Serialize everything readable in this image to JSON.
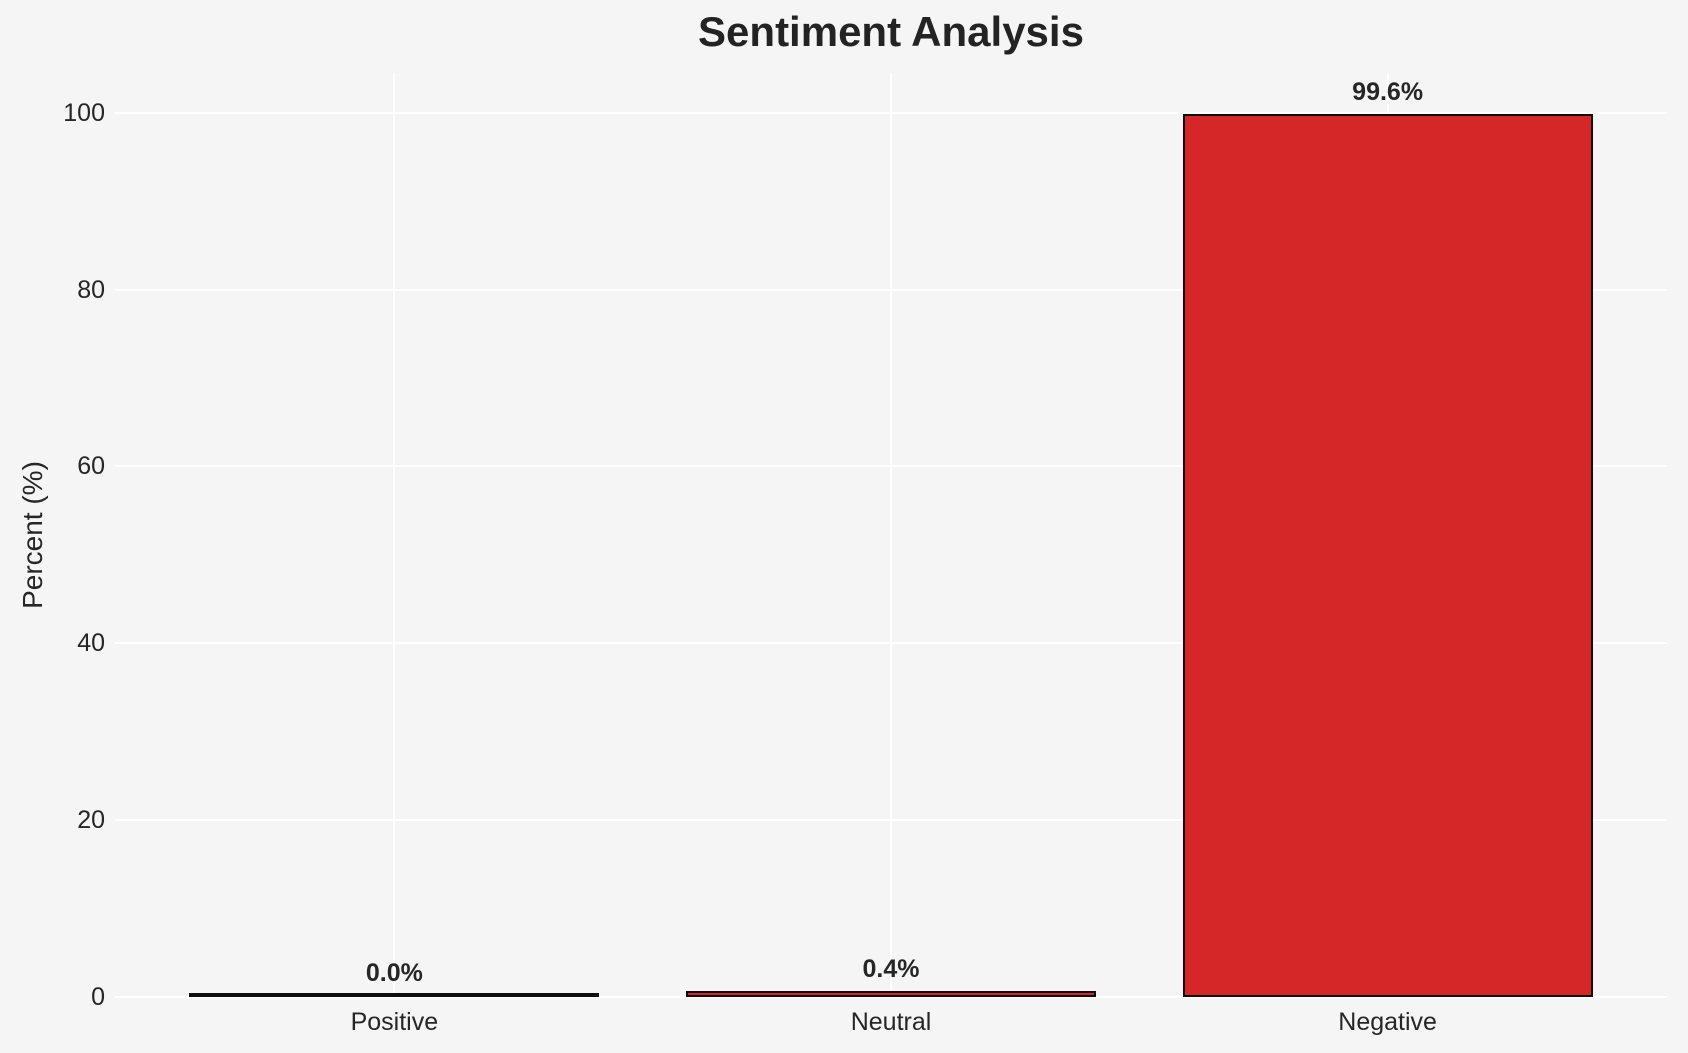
{
  "figure": {
    "background_color": "#f5f5f5"
  },
  "chart_data": {
    "type": "bar",
    "title": "Sentiment Analysis",
    "xlabel": "",
    "ylabel": "Percent (%)",
    "categories": [
      "Positive",
      "Neutral",
      "Negative"
    ],
    "values": [
      0.0,
      0.4,
      99.6
    ],
    "value_labels": [
      "0.0%",
      "0.4%",
      "99.6%"
    ],
    "yticks": [
      0,
      20,
      40,
      60,
      80,
      100
    ],
    "ylim": [
      0,
      104.5
    ],
    "grid": true,
    "grid_color": "#ffffff",
    "legend": "none",
    "bar_color": "#d62728",
    "bar_edge_color": "#0d0d0d",
    "text_color": "#262626",
    "background_color": "#f5f5f5"
  }
}
